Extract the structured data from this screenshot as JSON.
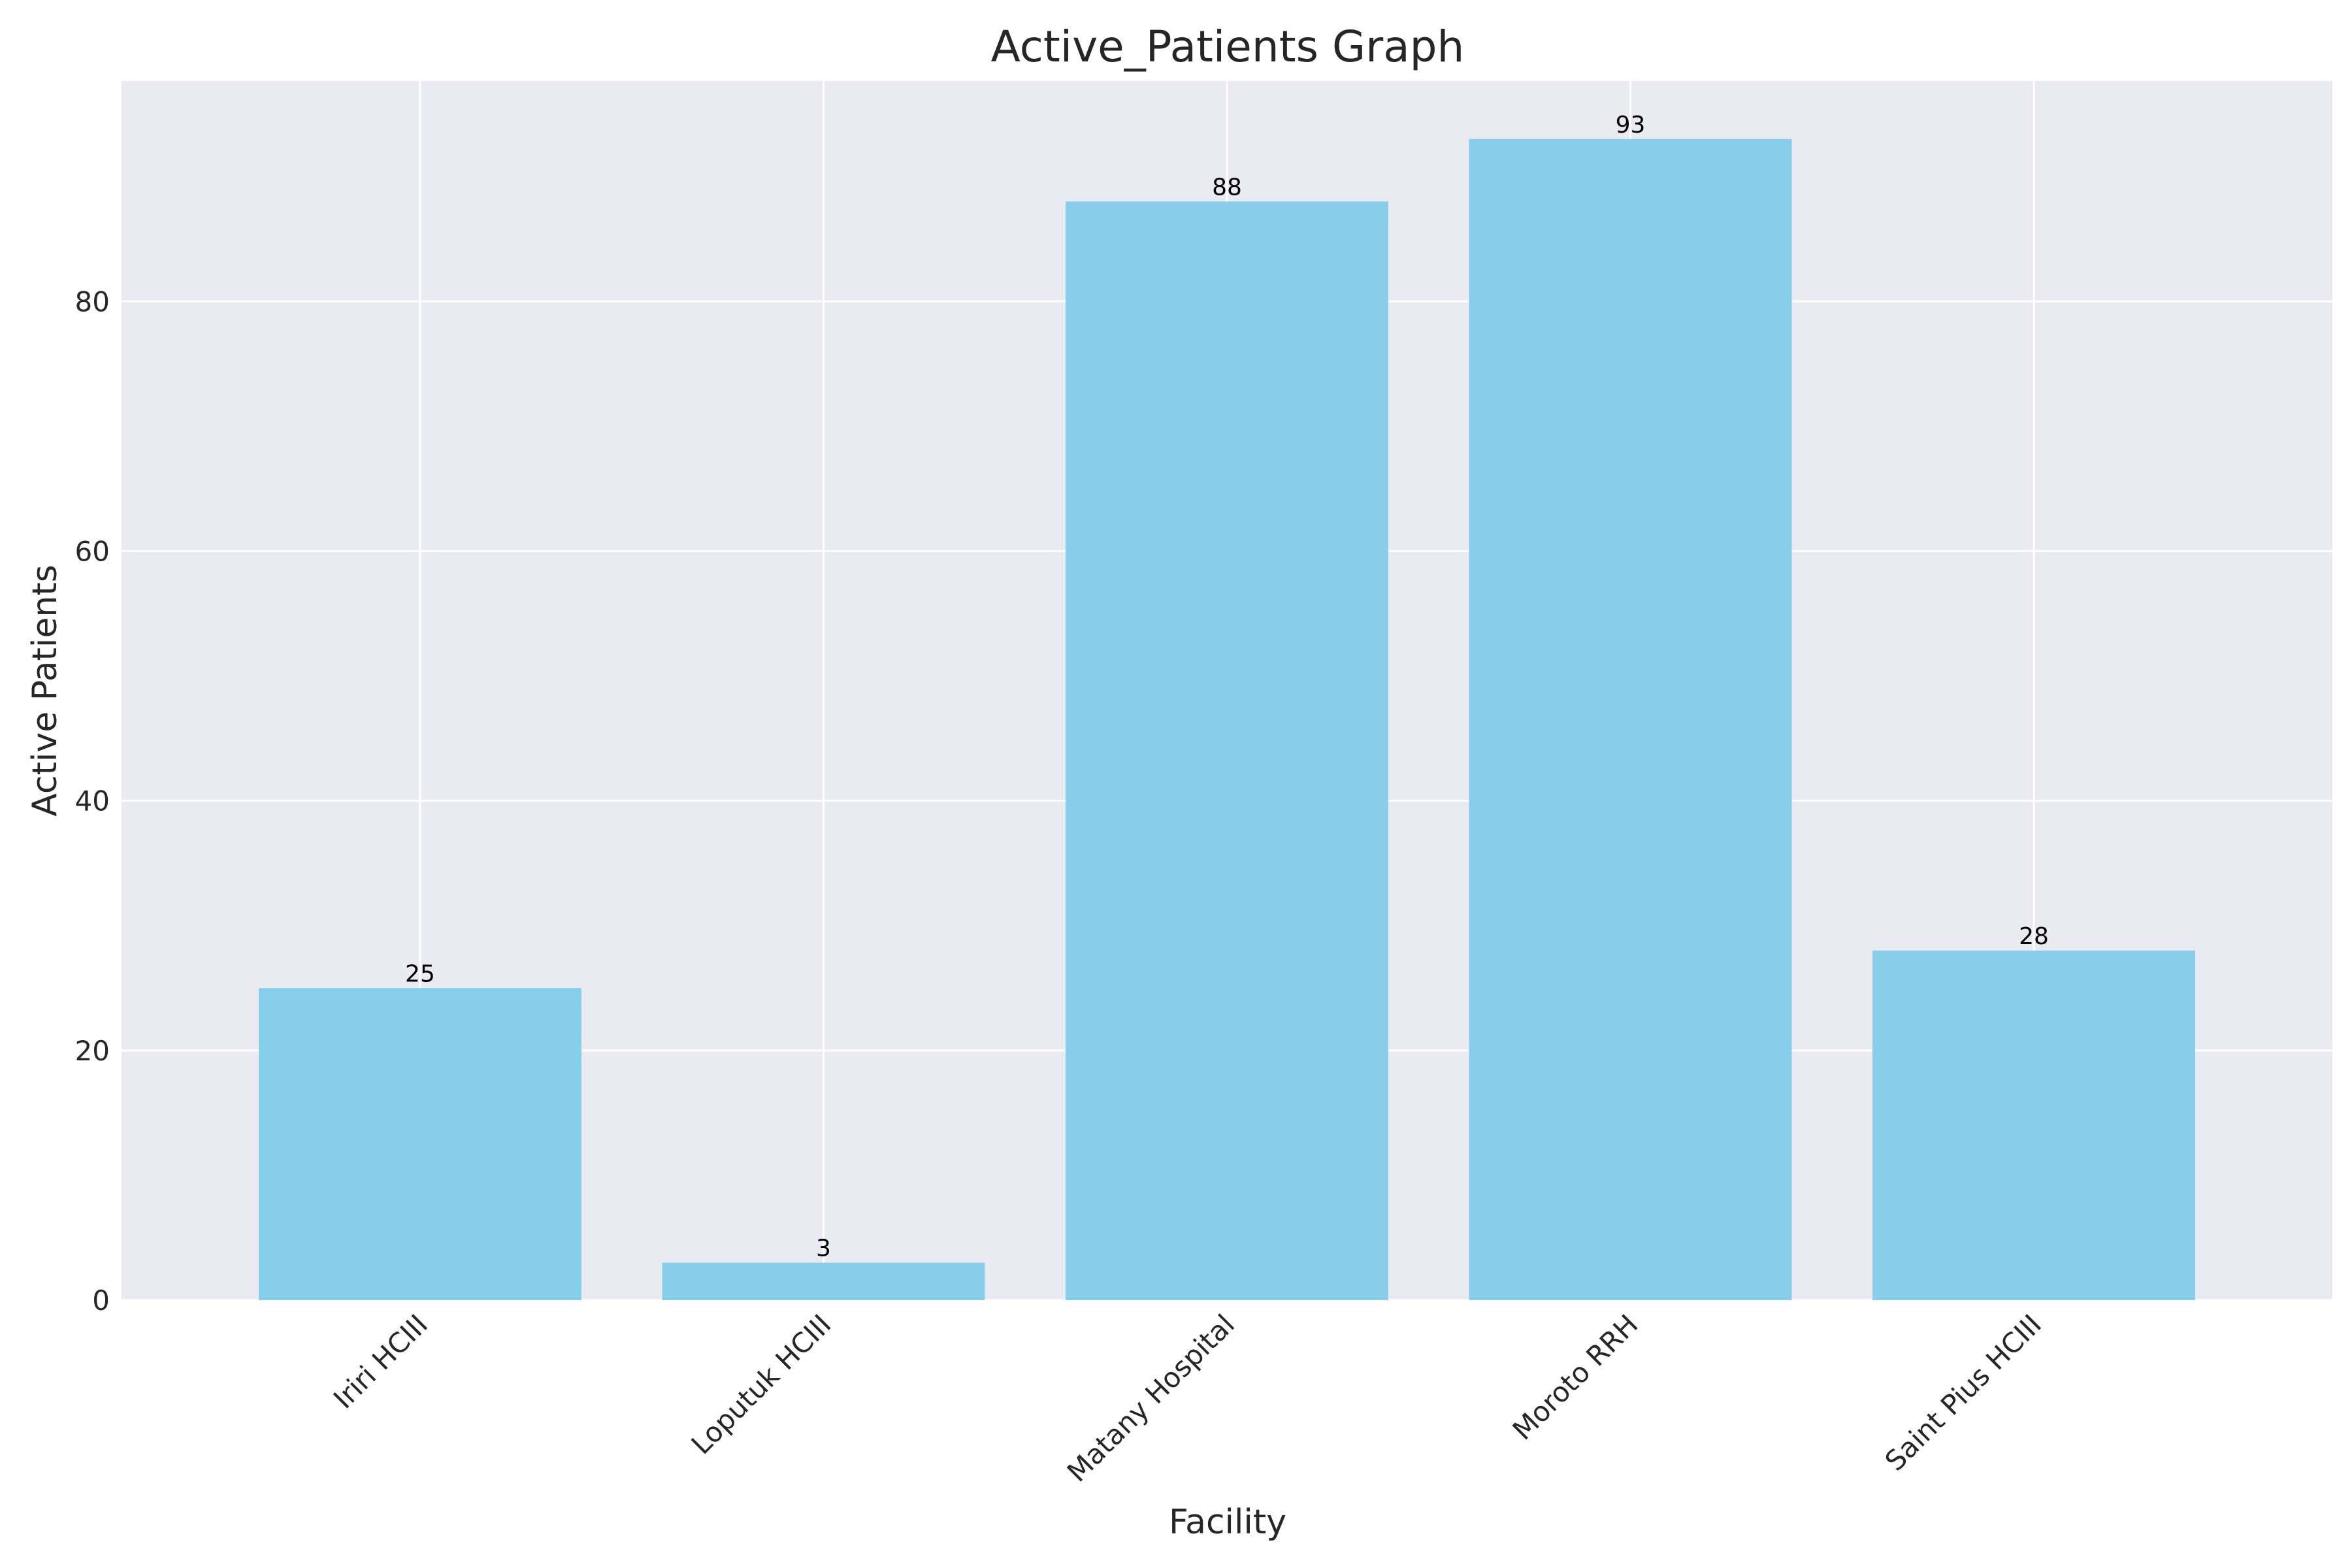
{
  "chart_data": {
    "type": "bar",
    "title": "Active_Patients Graph",
    "xlabel": "Facility",
    "ylabel": "Active Patients",
    "categories": [
      "Iriri HCIII",
      "Loputuk HCIII",
      "Matany Hospital",
      "Moroto RRH",
      "Saint Pius HCIII"
    ],
    "values": [
      25,
      3,
      88,
      93,
      28
    ],
    "data_labels": [
      "25",
      "3",
      "88",
      "93",
      "28"
    ],
    "ylim": [
      0,
      97.65
    ],
    "yticks": [
      0,
      20,
      40,
      60,
      80
    ],
    "ytick_labels": [
      "0",
      "20",
      "40",
      "60",
      "80"
    ],
    "grid": true,
    "legend": "none",
    "colors": {
      "bar": "#87CEEB",
      "plot_background": "#EAEAF2",
      "grid": "#FFFFFF",
      "text": "#262626",
      "label_text": "#000000"
    }
  }
}
